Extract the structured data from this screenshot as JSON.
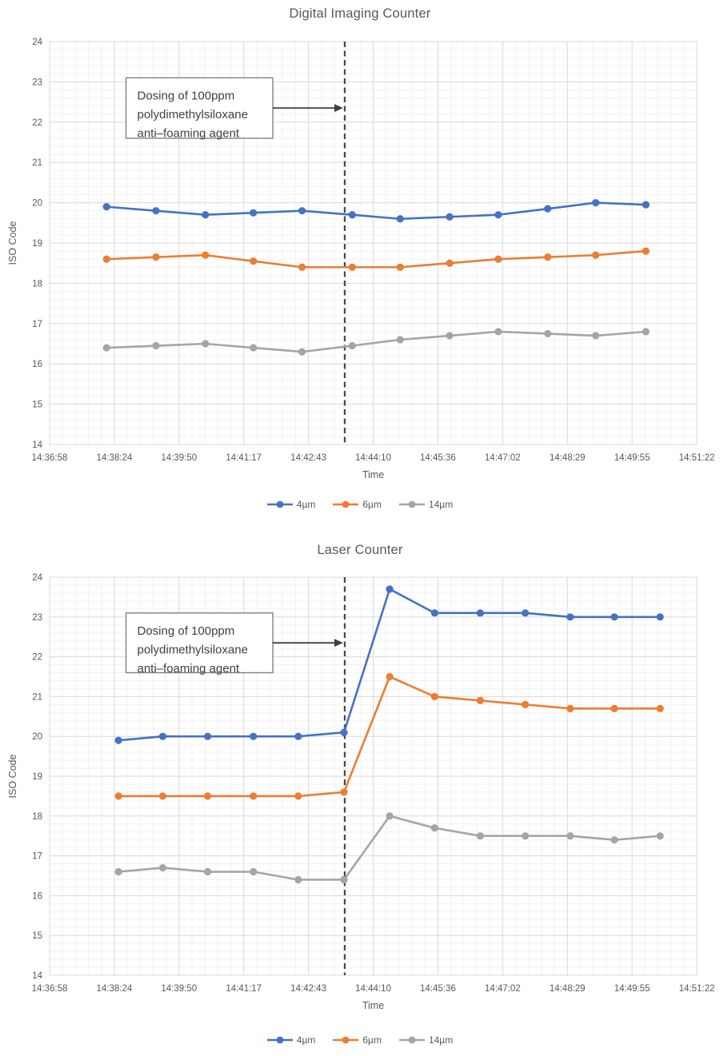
{
  "page": {
    "background": "#ffffff",
    "text_color": "#595959",
    "grid_major_color": "#d9d9d9",
    "grid_minor_color": "#f2f2f2",
    "annotation_border_color": "#808080",
    "annotation_text_color": "#404040",
    "dashed_line_color": "#474747"
  },
  "chart_data": [
    {
      "type": "line",
      "title": "Digital Imaging Counter",
      "xlabel": "Time",
      "ylabel": "ISO Code",
      "ylim": [
        14,
        24
      ],
      "y_tick_step": 1,
      "y_minor_step": 0.2,
      "grid": true,
      "legend_position": "bottom",
      "x_range": [
        "14:36:58",
        "14:51:22"
      ],
      "x_ticks": [
        "14:36:58",
        "14:38:24",
        "14:39:50",
        "14:41:17",
        "14:42:43",
        "14:44:10",
        "14:45:36",
        "14:47:02",
        "14:48:29",
        "14:49:55",
        "14:51:22"
      ],
      "x": [
        "14:38:14",
        "14:39:20",
        "14:40:26",
        "14:41:30",
        "14:42:35",
        "14:43:42",
        "14:44:46",
        "14:45:52",
        "14:46:57",
        "14:48:03",
        "14:49:07",
        "14:50:14"
      ],
      "series": [
        {
          "name": "4µm",
          "color": "#4472C4",
          "values": [
            19.9,
            19.8,
            19.7,
            19.75,
            19.8,
            19.7,
            19.6,
            19.65,
            19.7,
            19.85,
            20.0,
            19.95
          ]
        },
        {
          "name": "6µm",
          "color": "#ED7D31",
          "values": [
            18.6,
            18.65,
            18.7,
            18.55,
            18.4,
            18.4,
            18.4,
            18.5,
            18.6,
            18.65,
            18.7,
            18.8
          ]
        },
        {
          "name": "14µm",
          "color": "#A5A5A5",
          "values": [
            16.4,
            16.45,
            16.5,
            16.4,
            16.3,
            16.45,
            16.6,
            16.7,
            16.8,
            16.75,
            16.7,
            16.8
          ]
        }
      ],
      "event_line_x": "14:43:32",
      "annotation": {
        "lines": [
          "Dosing of 100ppm",
          "polydimethylsiloxane",
          "anti–foaming agent"
        ],
        "box_x": [
          "14:38:40",
          "14:41:56"
        ],
        "box_y": [
          23.1,
          21.6
        ],
        "arrow_y": 22.35
      }
    },
    {
      "type": "line",
      "title": "Laser Counter",
      "xlabel": "Time",
      "ylabel": "ISO Code",
      "ylim": [
        14,
        24
      ],
      "y_tick_step": 1,
      "y_minor_step": 0.2,
      "grid": true,
      "legend_position": "bottom",
      "x_range": [
        "14:36:58",
        "14:51:22"
      ],
      "x_ticks": [
        "14:36:58",
        "14:38:24",
        "14:39:50",
        "14:41:17",
        "14:42:43",
        "14:44:10",
        "14:45:36",
        "14:47:02",
        "14:48:29",
        "14:49:55",
        "14:51:22"
      ],
      "x": [
        "14:38:30",
        "14:39:29",
        "14:40:29",
        "14:41:30",
        "14:42:30",
        "14:43:31",
        "14:44:32",
        "14:45:32",
        "14:46:33",
        "14:47:33",
        "14:48:33",
        "14:49:32",
        "14:50:33"
      ],
      "series": [
        {
          "name": "4µm",
          "color": "#4472C4",
          "values": [
            19.9,
            20.0,
            20.0,
            20.0,
            20.0,
            20.1,
            23.7,
            23.1,
            23.1,
            23.1,
            23.0,
            23.0,
            23.0
          ]
        },
        {
          "name": "6µm",
          "color": "#ED7D31",
          "values": [
            18.5,
            18.5,
            18.5,
            18.5,
            18.5,
            18.6,
            21.5,
            21.0,
            20.9,
            20.8,
            20.7,
            20.7,
            20.7
          ]
        },
        {
          "name": "14µm",
          "color": "#A5A5A5",
          "values": [
            16.6,
            16.7,
            16.6,
            16.6,
            16.4,
            16.4,
            18.0,
            17.7,
            17.5,
            17.5,
            17.5,
            17.4,
            17.5
          ]
        }
      ],
      "event_line_x": "14:43:32",
      "annotation": {
        "lines": [
          "Dosing of 100ppm",
          "polydimethylsiloxane",
          "anti–foaming agent"
        ],
        "box_x": [
          "14:38:40",
          "14:41:56"
        ],
        "box_y": [
          23.1,
          21.6
        ],
        "arrow_y": 22.35
      }
    }
  ]
}
